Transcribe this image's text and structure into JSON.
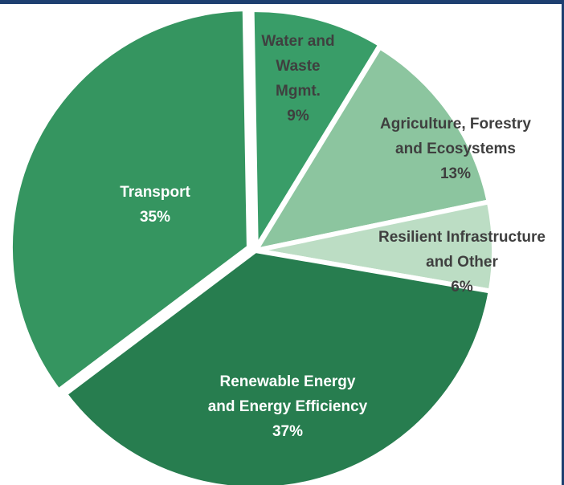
{
  "colors": {
    "frame": "#1e3f70",
    "background": "#ffffff",
    "label_dark": "#3f3f3f",
    "label_light": "#ffffff"
  },
  "chart_data": {
    "type": "pie",
    "title": "",
    "slices": [
      {
        "name": "Water and Waste Mgmt.",
        "label_lines": [
          "Water and",
          "Waste",
          "Mgmt."
        ],
        "pct_label": "9%",
        "value": 9,
        "color": "#399d68",
        "label_color": "dark"
      },
      {
        "name": "Agriculture, Forestry and Ecosystems",
        "label_lines": [
          "Agriculture, Forestry",
          "and Ecosystems"
        ],
        "pct_label": "13%",
        "value": 13,
        "color": "#8cc59f",
        "label_color": "dark"
      },
      {
        "name": "Resilient Infrastructure and Other",
        "label_lines": [
          "Resilient Infrastructure",
          "and Other"
        ],
        "pct_label": "6%",
        "value": 6,
        "color": "#bcddc4",
        "label_color": "dark"
      },
      {
        "name": "Renewable Energy and Energy Efficiency",
        "label_lines": [
          "Renewable Energy",
          "and Energy Efficiency"
        ],
        "pct_label": "37%",
        "value": 37,
        "color": "#277d4f",
        "label_color": "light"
      },
      {
        "name": "Transport",
        "label_lines": [
          "Transport"
        ],
        "pct_label": "35%",
        "value": 35,
        "color": "#359560",
        "label_color": "light"
      }
    ]
  }
}
